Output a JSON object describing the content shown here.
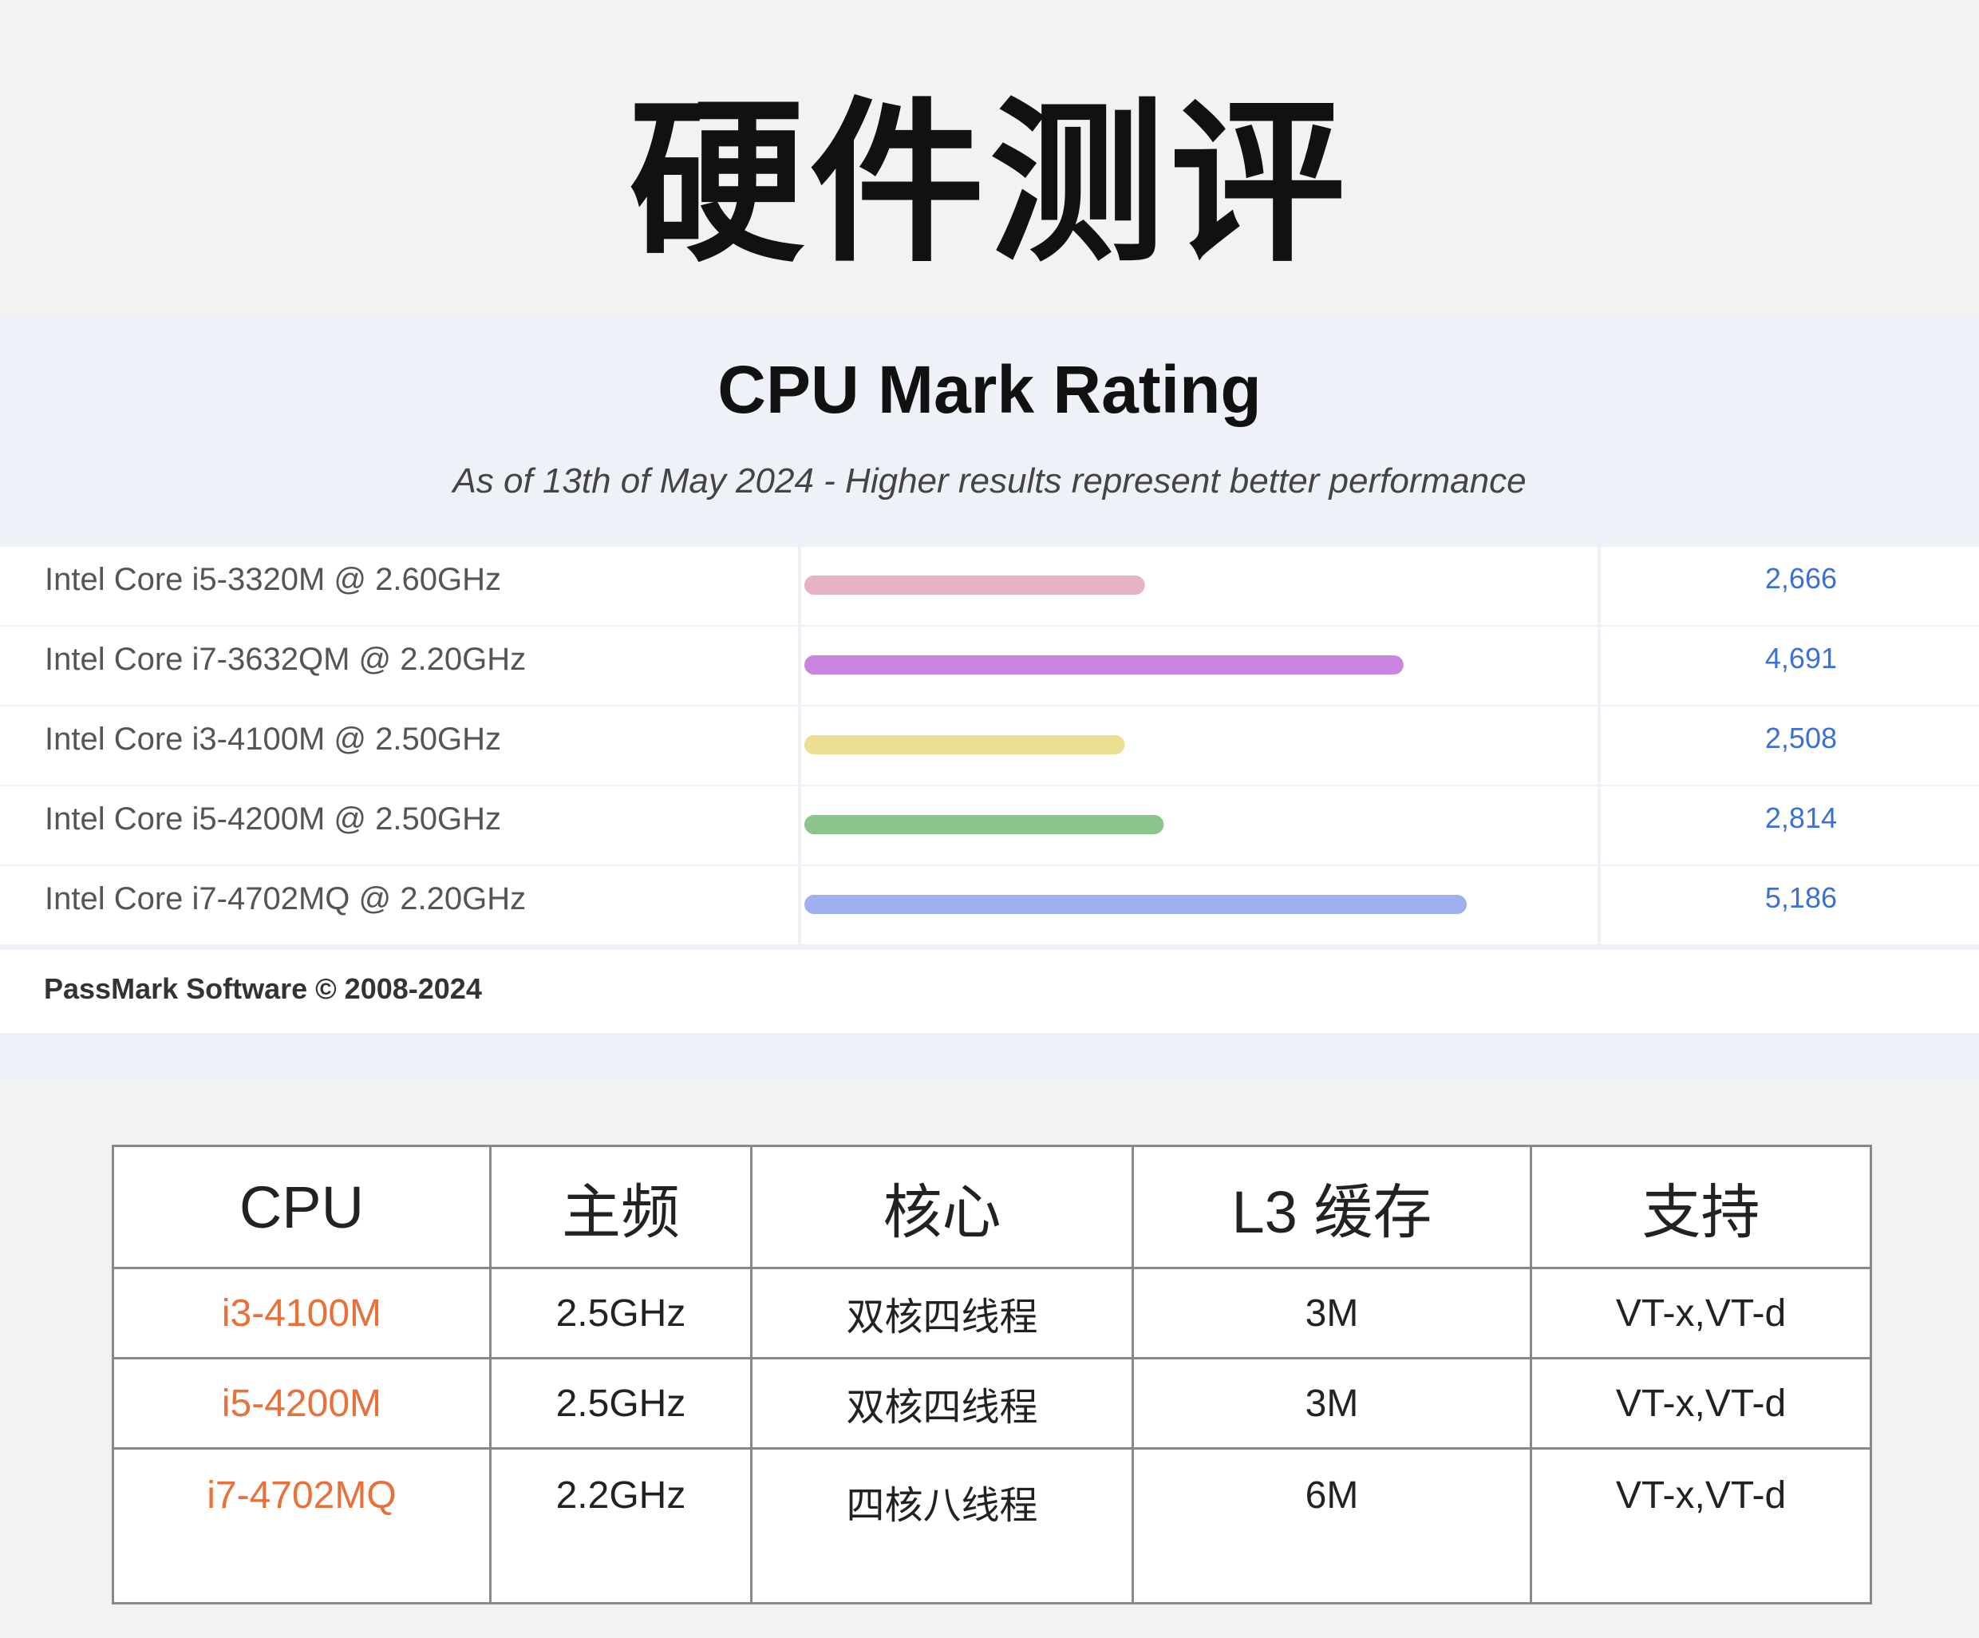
{
  "page_title": "硬件测评",
  "chart_data": {
    "type": "bar",
    "title": "CPU Mark Rating",
    "subtitle": "As of 13th of May 2024 - Higher results represent better performance",
    "categories": [
      "Intel Core i5-3320M @ 2.60GHz",
      "Intel Core i7-3632QM @ 2.20GHz",
      "Intel Core i3-4100M @ 2.50GHz",
      "Intel Core i5-4200M @ 2.50GHz",
      "Intel Core i7-4702MQ @ 2.20GHz"
    ],
    "values": [
      2666,
      4691,
      2508,
      2814,
      5186
    ],
    "value_labels": [
      "2,666",
      "4,691",
      "2,508",
      "2,814",
      "5,186"
    ],
    "colors": [
      "#e6b3c3",
      "#c985e0",
      "#ecdf92",
      "#8cc68c",
      "#9fb0ef"
    ],
    "value_color": "#3a70d8",
    "orientation": "horizontal",
    "xlim": [
      0,
      5186
    ],
    "grid": false,
    "legend": "none",
    "footer": "PassMark Software © 2008-2024"
  },
  "spec_table": {
    "headers": [
      "CPU",
      "主频",
      "核心",
      "L3 缓存",
      "支持"
    ],
    "rows": [
      [
        "i3-4100M",
        "2.5GHz",
        "双核四线程",
        "3M",
        "VT-x,VT-d"
      ],
      [
        "i5-4200M",
        "2.5GHz",
        "双核四线程",
        "3M",
        "VT-x,VT-d"
      ],
      [
        "i7-4702MQ",
        "2.2GHz",
        "四核八线程",
        "6M",
        "VT-x,VT-d"
      ]
    ]
  }
}
